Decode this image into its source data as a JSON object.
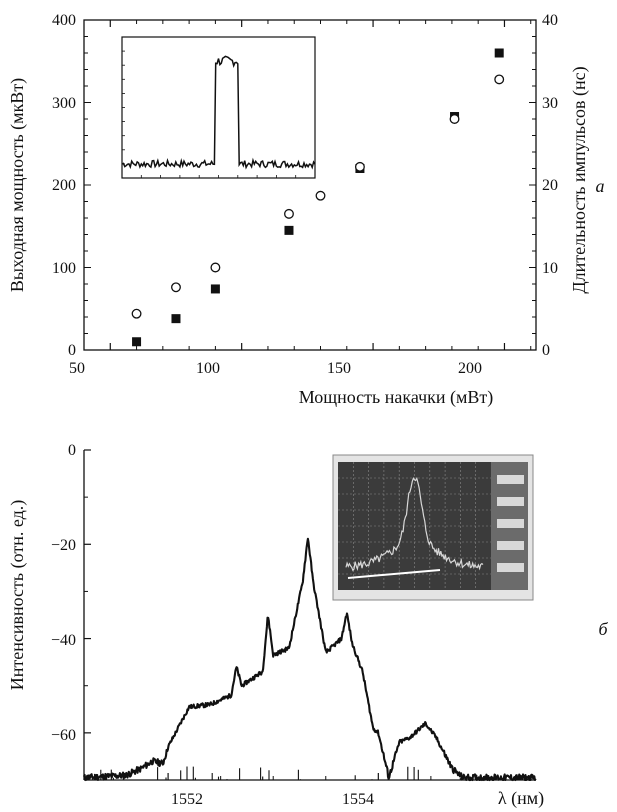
{
  "chart_data": [
    {
      "type": "scatter",
      "panel_label": "а",
      "xlabel": "Мощность накачки (мВт)",
      "ylabel": "Выходная мощность (мкВт)",
      "y2label": "Длительность импульсов (нс)",
      "xlim": [
        40,
        212
      ],
      "ylim": [
        0,
        400
      ],
      "y2lim": [
        0,
        40
      ],
      "xticks": [
        "50",
        "100",
        "150",
        "200"
      ],
      "yticks": [
        "0",
        "100",
        "200",
        "300",
        "400"
      ],
      "y2ticks": [
        "0",
        "10",
        "20",
        "30",
        "40"
      ],
      "series": [
        {
          "axis": "y",
          "marker": "filled-square",
          "x": [
            60,
            75,
            90,
            118,
            145,
            181,
            198
          ],
          "y": [
            10,
            38,
            74,
            145,
            220,
            283,
            360
          ]
        },
        {
          "axis": "y2",
          "marker": "open-circle",
          "x": [
            60,
            75,
            90,
            118,
            130,
            145,
            181,
            198
          ],
          "y": [
            4.4,
            7.6,
            10.0,
            16.5,
            18.7,
            22.2,
            28.0,
            32.8
          ]
        }
      ],
      "inset": {
        "type": "line",
        "description_shape": "single rectangular pulse",
        "x": [
          0,
          0.48,
          0.49,
          0.59,
          0.6,
          1
        ],
        "y": [
          0.1,
          0.1,
          0.85,
          0.85,
          0.1,
          0.1
        ]
      }
    },
    {
      "type": "line",
      "panel_label": "б",
      "xlabel": "λ (нм)",
      "ylabel": "Интенсивность (отн. ед.)",
      "xlim": [
        1551.2,
        1555.5
      ],
      "ylim": [
        -70,
        0
      ],
      "xticks": [
        "1552",
        "1554"
      ],
      "yticks": [
        "0",
        "−20",
        "−40",
        "−60"
      ],
      "x": [
        1551.2,
        1551.6,
        1551.75,
        1551.85,
        1551.95,
        1552.0,
        1552.2,
        1552.4,
        1552.6,
        1552.65,
        1552.7,
        1552.9,
        1552.95,
        1553.0,
        1553.15,
        1553.28,
        1553.33,
        1553.38,
        1553.5,
        1553.65,
        1553.7,
        1553.75,
        1553.85,
        1553.95,
        1554.0,
        1554.1,
        1554.2,
        1554.3,
        1554.45,
        1554.55,
        1554.7,
        1554.8,
        1555.0,
        1555.5
      ],
      "y": [
        -69.5,
        -69.0,
        -67.5,
        -66.0,
        -66.5,
        -63.0,
        -54.5,
        -54.0,
        -52.0,
        -46.0,
        -50.0,
        -47.0,
        -35.0,
        -43.5,
        -42.0,
        -28.0,
        -18.5,
        -28.0,
        -43.0,
        -40.0,
        -34.5,
        -41.0,
        -47.0,
        -59.0,
        -60.0,
        -69.5,
        -62.0,
        -61.0,
        -58.0,
        -61.0,
        -67.5,
        -69.5,
        -69.5,
        -69.5
      ]
    }
  ]
}
